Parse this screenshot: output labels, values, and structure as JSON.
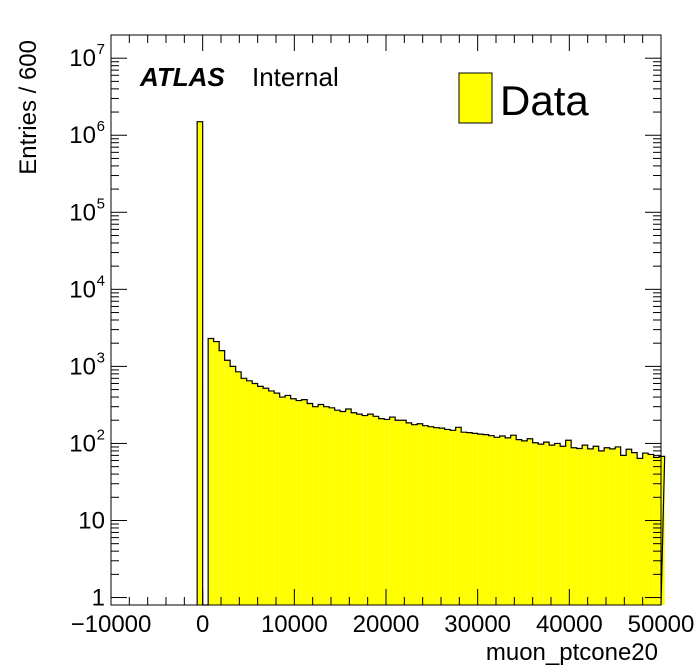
{
  "chart_data": {
    "type": "bar",
    "style": "histogram",
    "xlabel": "muon_ptcone20",
    "ylabel": "Entries / 600",
    "xlim": [
      -10000,
      50000
    ],
    "ylim": [
      0.8,
      20000000
    ],
    "yscale": "log",
    "bin_width": 600,
    "x_tick_labels": [
      "−10000",
      "0",
      "10000",
      "20000",
      "30000",
      "40000",
      "50000"
    ],
    "x_tick_values": [
      -10000,
      0,
      10000,
      20000,
      30000,
      40000,
      50000
    ],
    "y_tick_values": [
      1,
      10,
      100,
      1000,
      10000,
      100000,
      1000000,
      10000000
    ],
    "y_tick_labels": [
      {
        "base": "1",
        "exp": ""
      },
      {
        "base": "10",
        "exp": ""
      },
      {
        "base": "10",
        "exp": "2"
      },
      {
        "base": "10",
        "exp": "3"
      },
      {
        "base": "10",
        "exp": "4"
      },
      {
        "base": "10",
        "exp": "5"
      },
      {
        "base": "10",
        "exp": "6"
      },
      {
        "base": "10",
        "exp": "7"
      }
    ],
    "legend": {
      "label": "Data",
      "position": "top-right",
      "color": "#ffff00"
    },
    "atlas_label": {
      "bold": "ATLAS",
      "text": "Internal"
    },
    "fill_color": "#ffff00",
    "line_color": "#000000",
    "series": [
      {
        "name": "Data",
        "bin_low_edges": [
          -600,
          0,
          600,
          1200,
          1800,
          2400,
          3000,
          3600,
          4200,
          4800,
          5400,
          6000,
          6600,
          7200,
          7800,
          8400,
          9000,
          9600,
          10200,
          10800,
          11400,
          12000,
          12600,
          13200,
          13800,
          14400,
          15000,
          15600,
          16200,
          16800,
          17400,
          18000,
          18600,
          19200,
          19800,
          20400,
          21000,
          21600,
          22200,
          22800,
          23400,
          24000,
          24600,
          25200,
          25800,
          26400,
          27000,
          27600,
          28200,
          28800,
          29400,
          30000,
          30600,
          31200,
          31800,
          32400,
          33000,
          33600,
          34200,
          34800,
          35400,
          36000,
          36600,
          37200,
          37800,
          38400,
          39000,
          39600,
          40200,
          40800,
          41400,
          42000,
          42600,
          43200,
          43800,
          44400,
          45000,
          45600,
          46200,
          46800,
          47400,
          48000,
          48600,
          49200,
          49800
        ],
        "values": [
          1500000,
          0,
          2300,
          2100,
          1600,
          1200,
          1000,
          850,
          700,
          650,
          600,
          550,
          520,
          480,
          450,
          400,
          420,
          380,
          360,
          370,
          330,
          300,
          320,
          300,
          290,
          270,
          260,
          280,
          250,
          240,
          230,
          240,
          225,
          210,
          205,
          220,
          200,
          200,
          185,
          175,
          180,
          170,
          165,
          160,
          158,
          152,
          148,
          162,
          140,
          138,
          135,
          132,
          130,
          126,
          120,
          125,
          118,
          128,
          112,
          108,
          115,
          102,
          98,
          104,
          95,
          100,
          92,
          110,
          88,
          86,
          95,
          85,
          92,
          80,
          88,
          85,
          90,
          70,
          84,
          76,
          64,
          75,
          72,
          66,
          68
        ]
      }
    ]
  }
}
